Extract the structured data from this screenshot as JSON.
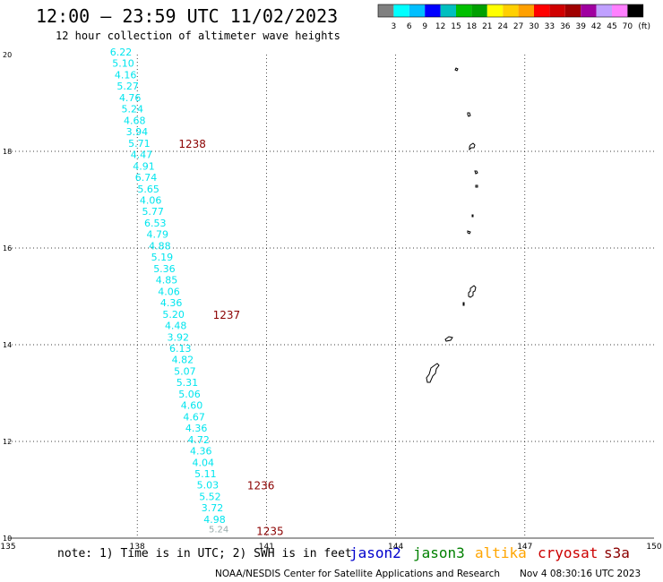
{
  "title": "12:00 – 23:59 UTC 11/02/2023",
  "subtitle": "12 hour collection of altimeter wave heights",
  "colorbar": {
    "colors": [
      "#808080",
      "#00ffff",
      "#00bfff",
      "#0000ff",
      "#00bfbf",
      "#00c000",
      "#00a000",
      "#ffff00",
      "#ffd000",
      "#ffa000",
      "#ff0000",
      "#d00000",
      "#a00000",
      "#a000a0",
      "#c0a0ff",
      "#ff80ff",
      "#000000"
    ],
    "labels": [
      "3",
      "6",
      "9",
      "12",
      "15",
      "18",
      "21",
      "24",
      "27",
      "30",
      "33",
      "36",
      "39",
      "42",
      "45",
      "70"
    ],
    "unit": "(ft)"
  },
  "map": {
    "lon_range": [
      135,
      150
    ],
    "lat_range": [
      10,
      20
    ],
    "x_ticks": [
      135,
      138,
      141,
      144,
      147,
      150
    ],
    "y_ticks": [
      10,
      12,
      14,
      16,
      18,
      20
    ]
  },
  "track": {
    "color": "#00e5ee",
    "label_color": "#8b0000",
    "values": [
      "6.22",
      "5.10",
      "4.16",
      "5.27",
      "4.76",
      "5.24",
      "4.68",
      "3.94",
      "5.71",
      "4.47",
      "4.91",
      "6.74",
      "5.65",
      "4.06",
      "5.77",
      "6.53",
      "4.79",
      "4.88",
      "5.19",
      "5.36",
      "4.85",
      "4.06",
      "4.36",
      "5.20",
      "4.48",
      "3.92",
      "6.13",
      "4.82",
      "5.07",
      "5.31",
      "5.06",
      "4.60",
      "4.67",
      "4.36",
      "4.72",
      "4.36",
      "4.04",
      "5.11",
      "5.03",
      "5.52",
      "3.72",
      "4.98"
    ],
    "last_value": "5.24",
    "time_labels": [
      {
        "text": "1238",
        "index": 8
      },
      {
        "text": "1237",
        "index": 23
      },
      {
        "text": "1236",
        "index": 38
      },
      {
        "text": "1235",
        "index": 42
      }
    ]
  },
  "footer": {
    "note": "note: 1) Time is in UTC; 2) SWH is in feet",
    "satellites": [
      {
        "name": "jason2",
        "color": "#0000cd"
      },
      {
        "name": "jason3",
        "color": "#008000"
      },
      {
        "name": "altika",
        "color": "#ffa500"
      },
      {
        "name": "cryosat",
        "color": "#cc0000"
      },
      {
        "name": "s3a",
        "color": "#8b0000"
      }
    ],
    "credit": "NOAA/NESDIS Center for Satellite Applications and Research",
    "timestamp": "Nov  4 08:30:16 UTC 2023"
  }
}
